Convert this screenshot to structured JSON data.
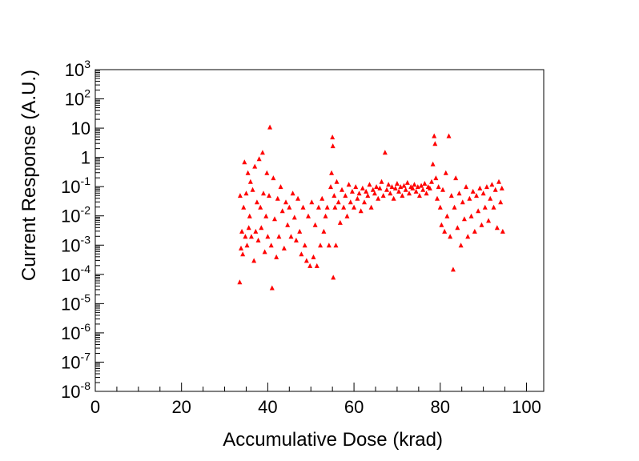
{
  "chart_data": {
    "type": "scatter",
    "title": "",
    "xlabel": "Accumulative Dose (krad)",
    "ylabel": "Current Response (A.U.)",
    "xlim": [
      0,
      104
    ],
    "ylim": [
      1e-08,
      1000
    ],
    "yscale": "log",
    "grid": false,
    "legend": "none",
    "marker": "triangle-up",
    "color": "#ff0000",
    "x_ticks": [
      {
        "value": 0,
        "label": "0"
      },
      {
        "value": 20,
        "label": "20"
      },
      {
        "value": 40,
        "label": "40"
      },
      {
        "value": 60,
        "label": "60"
      },
      {
        "value": 80,
        "label": "80"
      },
      {
        "value": 100,
        "label": "100"
      }
    ],
    "y_ticks": [
      {
        "exp": -8,
        "base": "10",
        "sup": "-8"
      },
      {
        "exp": -7,
        "base": "10",
        "sup": "-7"
      },
      {
        "exp": -6,
        "base": "10",
        "sup": "-6"
      },
      {
        "exp": -5,
        "base": "10",
        "sup": "-5"
      },
      {
        "exp": -4,
        "base": "10",
        "sup": "-4"
      },
      {
        "exp": -3,
        "base": "10",
        "sup": "-3"
      },
      {
        "exp": -2,
        "base": "10",
        "sup": "-2"
      },
      {
        "exp": -1,
        "base": "10",
        "sup": "-1"
      },
      {
        "exp": 0,
        "base": "1",
        "sup": ""
      },
      {
        "exp": 1,
        "base": "10",
        "sup": ""
      },
      {
        "exp": 2,
        "base": "10",
        "sup": "2"
      },
      {
        "exp": 3,
        "base": "10",
        "sup": "3"
      }
    ],
    "points": [
      [
        33.5,
        5.5e-05
      ],
      [
        33.6,
        0.05
      ],
      [
        33.8,
        0.0008
      ],
      [
        34.0,
        0.003
      ],
      [
        34.2,
        0.0005
      ],
      [
        34.4,
        0.02
      ],
      [
        34.6,
        0.7
      ],
      [
        34.8,
        0.002
      ],
      [
        35.0,
        0.06
      ],
      [
        35.2,
        0.001
      ],
      [
        35.4,
        0.3
      ],
      [
        35.6,
        0.004
      ],
      [
        35.8,
        0.01
      ],
      [
        36.0,
        0.15
      ],
      [
        36.2,
        0.002
      ],
      [
        36.5,
        0.08
      ],
      [
        36.8,
        0.0003
      ],
      [
        37.0,
        0.5
      ],
      [
        37.2,
        0.003
      ],
      [
        37.5,
        0.03
      ],
      [
        37.8,
        0.0015
      ],
      [
        38.0,
        0.9
      ],
      [
        38.3,
        0.02
      ],
      [
        38.5,
        0.004
      ],
      [
        38.8,
        1.5
      ],
      [
        39.0,
        0.06
      ],
      [
        39.3,
        0.0006
      ],
      [
        39.6,
        0.01
      ],
      [
        39.8,
        0.3
      ],
      [
        40.0,
        0.002
      ],
      [
        40.3,
        0.05
      ],
      [
        40.5,
        11.0
      ],
      [
        40.8,
        0.001
      ],
      [
        41.0,
        3.5e-05
      ],
      [
        41.3,
        0.2
      ],
      [
        41.6,
        0.008
      ],
      [
        42.0,
        0.0004
      ],
      [
        42.3,
        0.04
      ],
      [
        42.6,
        0.002
      ],
      [
        43.0,
        0.1
      ],
      [
        43.4,
        0.015
      ],
      [
        43.8,
        0.0008
      ],
      [
        44.2,
        0.03
      ],
      [
        44.6,
        0.005
      ],
      [
        45.0,
        0.02
      ],
      [
        45.4,
        0.002
      ],
      [
        45.8,
        0.06
      ],
      [
        46.2,
        0.009
      ],
      [
        46.6,
        0.0015
      ],
      [
        47.0,
        0.04
      ],
      [
        47.4,
        0.003
      ],
      [
        47.8,
        0.0005
      ],
      [
        48.2,
        0.02
      ],
      [
        48.6,
        0.001
      ],
      [
        49.0,
        0.0003
      ],
      [
        49.4,
        0.01
      ],
      [
        49.8,
        0.0002
      ],
      [
        50.2,
        0.03
      ],
      [
        50.6,
        0.0004
      ],
      [
        51.0,
        0.005
      ],
      [
        51.4,
        0.0002
      ],
      [
        51.8,
        0.02
      ],
      [
        52.2,
        0.001
      ],
      [
        52.6,
        0.04
      ],
      [
        53.0,
        0.003
      ],
      [
        53.4,
        0.01
      ],
      [
        53.8,
        0.02
      ],
      [
        54.2,
        0.001
      ],
      [
        54.6,
        0.1
      ],
      [
        54.8,
        0.3
      ],
      [
        55.0,
        5.0
      ],
      [
        55.1,
        2.5
      ],
      [
        55.2,
        8e-05
      ],
      [
        55.4,
        0.05
      ],
      [
        55.6,
        0.02
      ],
      [
        55.8,
        0.001
      ],
      [
        56.0,
        0.15
      ],
      [
        56.4,
        0.03
      ],
      [
        56.8,
        0.006
      ],
      [
        57.2,
        0.08
      ],
      [
        57.6,
        0.02
      ],
      [
        58.0,
        0.05
      ],
      [
        58.4,
        0.01
      ],
      [
        58.8,
        0.12
      ],
      [
        59.2,
        0.03
      ],
      [
        59.6,
        0.07
      ],
      [
        60.0,
        0.02
      ],
      [
        60.4,
        0.1
      ],
      [
        60.8,
        0.04
      ],
      [
        61.2,
        0.06
      ],
      [
        61.6,
        0.015
      ],
      [
        62.0,
        0.09
      ],
      [
        62.4,
        0.03
      ],
      [
        62.8,
        0.07
      ],
      [
        63.2,
        0.05
      ],
      [
        63.6,
        0.12
      ],
      [
        64.0,
        0.02
      ],
      [
        64.4,
        0.08
      ],
      [
        64.8,
        0.06
      ],
      [
        65.2,
        0.1
      ],
      [
        65.6,
        0.04
      ],
      [
        66.0,
        0.09
      ],
      [
        66.4,
        0.15
      ],
      [
        66.8,
        0.05
      ],
      [
        67.2,
        1.5
      ],
      [
        67.6,
        0.08
      ],
      [
        68.0,
        0.12
      ],
      [
        68.4,
        0.06
      ],
      [
        68.8,
        0.1
      ],
      [
        69.2,
        0.04
      ],
      [
        69.6,
        0.09
      ],
      [
        70.0,
        0.13
      ],
      [
        70.4,
        0.07
      ],
      [
        70.8,
        0.1
      ],
      [
        71.2,
        0.05
      ],
      [
        71.6,
        0.11
      ],
      [
        72.0,
        0.08
      ],
      [
        72.4,
        0.14
      ],
      [
        72.8,
        0.06
      ],
      [
        73.2,
        0.1
      ],
      [
        73.6,
        0.09
      ],
      [
        74.0,
        0.12
      ],
      [
        74.4,
        0.07
      ],
      [
        74.8,
        0.1
      ],
      [
        75.2,
        0.05
      ],
      [
        75.6,
        0.11
      ],
      [
        76.0,
        0.08
      ],
      [
        76.4,
        0.13
      ],
      [
        76.8,
        0.06
      ],
      [
        77.2,
        0.1
      ],
      [
        77.6,
        0.09
      ],
      [
        78.0,
        0.15
      ],
      [
        78.3,
        0.6
      ],
      [
        78.6,
        5.5
      ],
      [
        78.8,
        3.0
      ],
      [
        79.0,
        0.2
      ],
      [
        79.3,
        0.04
      ],
      [
        79.6,
        0.1
      ],
      [
        80.0,
        0.02
      ],
      [
        80.3,
        0.005
      ],
      [
        80.6,
        0.08
      ],
      [
        81.0,
        0.003
      ],
      [
        81.3,
        0.3
      ],
      [
        81.6,
        0.01
      ],
      [
        82.0,
        5.5
      ],
      [
        82.3,
        0.002
      ],
      [
        82.6,
        0.05
      ],
      [
        83.0,
        0.00015
      ],
      [
        83.3,
        0.02
      ],
      [
        83.6,
        0.2
      ],
      [
        84.0,
        0.004
      ],
      [
        84.4,
        0.06
      ],
      [
        84.8,
        0.001
      ],
      [
        85.2,
        0.03
      ],
      [
        85.6,
        0.008
      ],
      [
        86.0,
        0.1
      ],
      [
        86.4,
        0.002
      ],
      [
        86.8,
        0.04
      ],
      [
        87.2,
        0.01
      ],
      [
        87.6,
        0.07
      ],
      [
        88.0,
        0.003
      ],
      [
        88.4,
        0.05
      ],
      [
        88.8,
        0.015
      ],
      [
        89.2,
        0.09
      ],
      [
        89.6,
        0.005
      ],
      [
        90.0,
        0.06
      ],
      [
        90.4,
        0.02
      ],
      [
        90.8,
        0.1
      ],
      [
        91.2,
        0.007
      ],
      [
        91.6,
        0.04
      ],
      [
        92.0,
        0.12
      ],
      [
        92.4,
        0.02
      ],
      [
        92.8,
        0.08
      ],
      [
        93.2,
        0.004
      ],
      [
        93.6,
        0.15
      ],
      [
        94.0,
        0.03
      ],
      [
        94.3,
        0.09
      ],
      [
        94.5,
        0.003
      ]
    ]
  }
}
